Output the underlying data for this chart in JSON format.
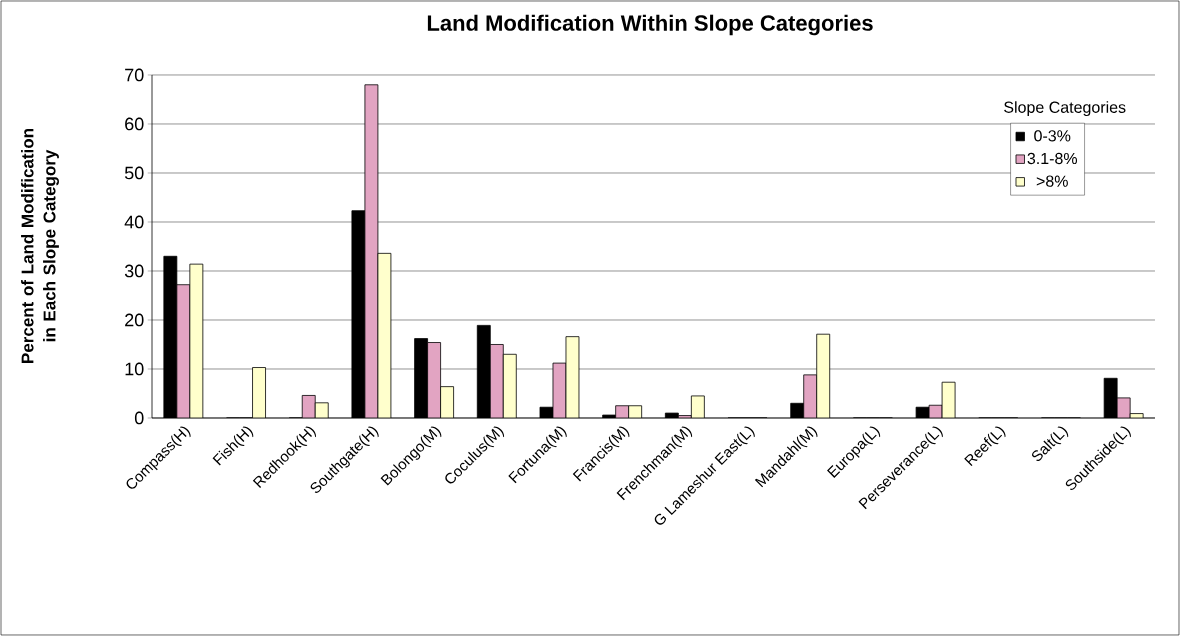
{
  "chart_data": {
    "type": "bar",
    "title": "Land Modification Within Slope Categories",
    "ylabel": "Percent of Land Modification in Each Slope Category",
    "legend_title": "Slope Categories",
    "categories": [
      "Compass(H)",
      "Fish(H)",
      "Redhook(H)",
      "Southgate(H)",
      "Bolongo(M)",
      "Coculus(M)",
      "Fortuna(M)",
      "Francis(M)",
      "Frenchman(M)",
      "G Lameshur East(L)",
      "Mandahl(M)",
      "Europa(L)",
      "Perseverance(L)",
      "Reef(L)",
      "Salt(L)",
      "Southside(L)"
    ],
    "series": [
      {
        "name": "0-3%",
        "color": "#000000",
        "values": [
          33,
          0,
          0,
          42.3,
          16.2,
          18.9,
          2.2,
          0.6,
          1.0,
          0,
          3.0,
          0,
          2.2,
          0,
          0,
          8.1
        ]
      },
      {
        "name": "3.1-8%",
        "color": "#e2a4c2",
        "values": [
          27.2,
          0,
          4.6,
          68,
          15.4,
          15,
          11.2,
          2.5,
          0.5,
          0,
          8.8,
          0,
          2.6,
          0,
          0,
          4.1
        ]
      },
      {
        "name": ">8%",
        "color": "#ffffcc",
        "values": [
          31.4,
          10.3,
          3.1,
          33.6,
          6.4,
          13,
          16.6,
          2.5,
          4.5,
          0,
          17.1,
          0,
          7.3,
          0,
          0,
          0.9
        ]
      }
    ],
    "ylim": [
      0,
      70
    ],
    "yticks": [
      0,
      10,
      20,
      30,
      40,
      50,
      60,
      70
    ],
    "grid": "y",
    "legend": "top right"
  }
}
